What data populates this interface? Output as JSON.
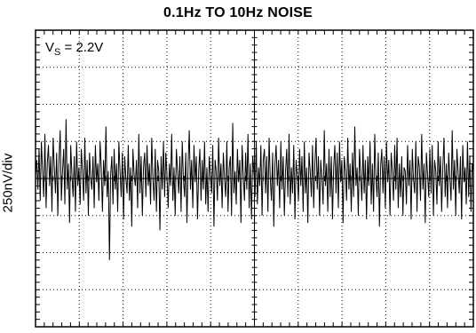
{
  "chart_data": {
    "type": "line",
    "title": "0.1Hz TO 10Hz NOISE",
    "ylabel": "250nV/div",
    "annotation": {
      "label_main": "V",
      "label_sub": "S",
      "label_rest": " = 2.2V"
    },
    "x_divisions": 10,
    "y_divisions": 8,
    "minor_ticks_per_division": 5,
    "grid": "dotted",
    "ylim": [
      -4,
      4
    ],
    "series": [
      {
        "values": [
          0.1,
          0.5,
          -0.3,
          0.8,
          -0.6,
          1.0,
          0.2,
          -0.5,
          1.2,
          -0.8,
          0.4,
          0.9,
          -0.2,
          0.6,
          -0.9,
          1.1,
          0.3,
          -0.4,
          0.7,
          -1.0,
          0.5,
          1.3,
          -0.6,
          0.2,
          0.8,
          -0.7,
          1.6,
          -0.3,
          0.4,
          -1.2,
          0.9,
          0.1,
          -0.5,
          0.6,
          -0.9,
          1.0,
          -0.2,
          0.3,
          -0.7,
          0.8,
          0.2,
          -0.6,
          1.1,
          -0.4,
          0.5,
          -1.0,
          0.7,
          0.0,
          -0.3,
          0.6,
          -0.8,
          0.9,
          -0.1,
          0.4,
          -0.6,
          1.0,
          0.3,
          -0.9,
          0.5,
          -0.2,
          1.4,
          -0.5,
          0.2,
          -2.2,
          0.1,
          0.6,
          -0.7,
          0.8,
          -0.3,
          0.4,
          -0.9,
          1.0,
          0.2,
          -0.5,
          0.7,
          -1.1,
          0.6,
          0.0,
          -0.4,
          0.9,
          -0.6,
          0.3,
          -1.3,
          0.8,
          0.1,
          -0.2,
          0.5,
          -0.8,
          1.2,
          -0.4,
          0.6,
          -1.0,
          0.3,
          0.7,
          -0.5,
          0.9,
          -0.2,
          0.4,
          -0.7,
          1.1,
          0.0,
          -0.6,
          0.8,
          -0.9,
          0.5,
          0.2,
          -1.4,
          0.6,
          -0.3,
          1.0,
          -0.5,
          0.7,
          0.1,
          -0.8,
          0.4,
          -0.2,
          1.2,
          -0.6,
          0.3,
          -1.0,
          0.8,
          0.2,
          -0.4,
          0.6,
          -0.9,
          1.0,
          0.0,
          -0.5,
          0.7,
          -1.2,
          0.4,
          1.3,
          -0.3,
          0.5,
          -0.8,
          0.9,
          -0.1,
          0.6,
          -1.1,
          0.2,
          0.8,
          -0.6,
          0.5,
          -0.3,
          1.0,
          -0.7,
          0.3,
          -0.9,
          0.6,
          0.1,
          -0.4,
          0.9,
          -1.3,
          0.5,
          0.2,
          -0.6,
          1.1,
          -0.2,
          0.4,
          -0.8,
          0.7,
          0.0,
          -0.5,
          1.0,
          -0.9,
          0.3,
          0.6,
          -1.0,
          1.5,
          -0.4,
          0.2,
          -0.7,
          0.8,
          -0.1,
          0.5,
          -1.2,
          0.9,
          0.1,
          -0.6,
          0.7,
          -0.3,
          1.2,
          -0.8,
          0.4,
          -1.1,
          0.6,
          0.2,
          -0.5,
          1.0,
          -0.7,
          0.3,
          -0.2,
          0.9,
          -1.0,
          0.5,
          0.8,
          -0.4,
          0.6,
          -0.9,
          1.1,
          0.0,
          -0.6,
          0.7,
          -1.3,
          0.4,
          0.9,
          -0.2,
          0.5,
          -0.8,
          1.0,
          -0.3,
          0.6,
          -1.0,
          0.2,
          0.8,
          -0.5,
          1.2,
          -0.7,
          0.3,
          -0.4,
          0.9,
          -1.1,
          0.5,
          0.1,
          -0.6,
          0.8,
          -0.2,
          0.6,
          -0.9,
          1.0,
          -0.4,
          0.3,
          -1.2,
          0.7,
          0.2,
          -0.5,
          0.9,
          -0.8,
          0.4,
          1.1,
          -0.3,
          0.6,
          -1.0,
          0.5,
          0.0,
          -0.7,
          1.3,
          -0.2,
          0.4,
          -0.9,
          0.8,
          -0.5,
          0.6,
          -1.1,
          0.3,
          0.9,
          -0.4,
          0.7,
          -0.8,
          1.0,
          -0.1,
          0.5,
          -1.2,
          0.6,
          0.2,
          -0.6,
          1.1,
          -0.3,
          0.4,
          -0.9,
          0.7,
          -0.5,
          1.4,
          -0.2,
          0.3,
          -1.0,
          0.8,
          0.1,
          -0.6,
          0.9,
          -0.4,
          0.5,
          -1.1,
          0.6,
          -0.2,
          1.0,
          -0.7,
          0.4,
          -0.9,
          1.2,
          0.0,
          -0.5,
          0.7,
          -1.3,
          0.3,
          0.8,
          -0.4,
          0.6,
          -0.8,
          1.0,
          -0.1,
          0.5,
          -1.0,
          0.7,
          0.2,
          -0.6,
          0.9,
          -0.3,
          1.1,
          -0.8,
          0.4,
          -0.5,
          0.6,
          -1.0,
          0.3,
          0.2,
          -0.7,
          0.9,
          -0.2,
          0.5,
          -1.1,
          0.8,
          0.0,
          -0.4,
          1.0,
          -0.9,
          0.6,
          0.3,
          -0.6,
          1.2,
          -0.3,
          0.4,
          -1.2,
          0.7,
          0.1,
          -0.5,
          0.8,
          -0.4,
          0.9,
          -1.0,
          0.5,
          0.2,
          -0.7,
          1.0,
          -0.2,
          0.6,
          -0.9,
          0.3,
          1.1,
          -0.5,
          0.4,
          -0.8,
          0.7,
          0.0,
          -0.6,
          1.3,
          -0.3,
          0.5,
          -1.0,
          0.8,
          0.2,
          -0.4,
          0.6,
          -1.1,
          0.9,
          -0.1,
          0.3,
          -0.7,
          1.0,
          -0.5,
          0.6,
          -0.9,
          0.4,
          0.2
        ]
      }
    ]
  }
}
